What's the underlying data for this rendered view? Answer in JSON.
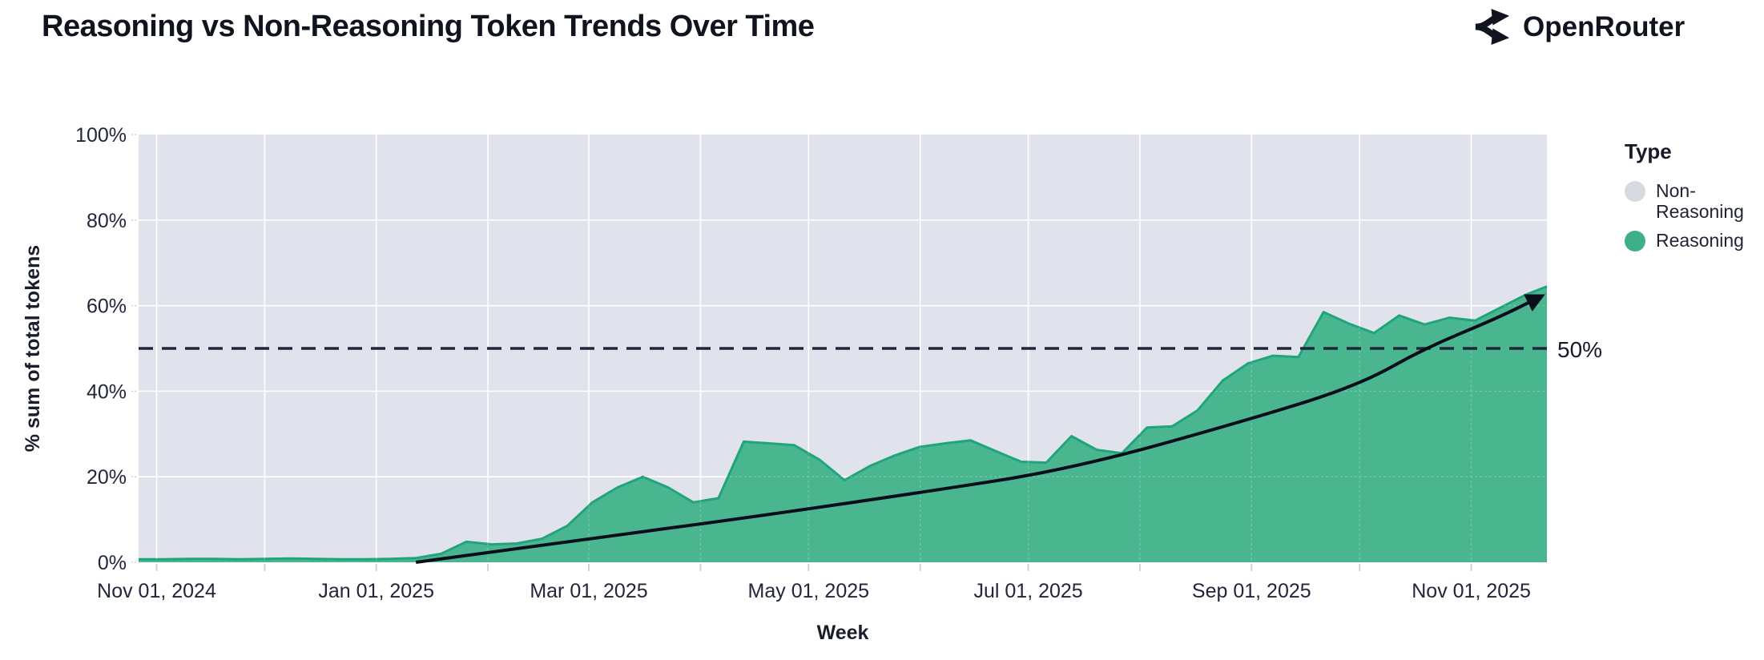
{
  "header": {
    "title": "Reasoning vs Non-Reasoning Token Trends Over Time",
    "brand": "OpenRouter"
  },
  "legend": {
    "title": "Type",
    "items": [
      {
        "label": "Non-Reasoning",
        "color": "#d7dae1"
      },
      {
        "label": "Reasoning",
        "color": "#3fae8a"
      }
    ]
  },
  "colors": {
    "plot_bg": "#e1e3ec",
    "gridline": "#ffffff",
    "area_fill": "#4ab690",
    "area_edge": "#1fa47c",
    "nonreasoning_fill": "#d7dae1",
    "dashed_line": "#20273a",
    "trend_line": "#0a0e1a",
    "tick_text": "#22263a",
    "tick_mark": "#cfd2db"
  },
  "chart_data": {
    "type": "area",
    "stacked_percent": true,
    "title": "Reasoning vs Non-Reasoning Token Trends Over Time",
    "xlabel": "Week",
    "ylabel": "% sum of total tokens",
    "ylim": [
      0,
      100
    ],
    "grid": true,
    "legend_position": "right",
    "x_domain": [
      "2024-10-27",
      "2025-11-22"
    ],
    "y_ticks": [
      {
        "label": "0%",
        "value": 0
      },
      {
        "label": "20%",
        "value": 20
      },
      {
        "label": "40%",
        "value": 40
      },
      {
        "label": "60%",
        "value": 60
      },
      {
        "label": "80%",
        "value": 80
      },
      {
        "label": "100%",
        "value": 100
      }
    ],
    "x_ticks": [
      {
        "label": "Nov 01, 2024",
        "date": "2024-11-01"
      },
      {
        "label": "Jan 01, 2025",
        "date": "2025-01-01"
      },
      {
        "label": "Mar 01, 2025",
        "date": "2025-03-01"
      },
      {
        "label": "May 01, 2025",
        "date": "2025-05-01"
      },
      {
        "label": "Jul 01, 2025",
        "date": "2025-07-01"
      },
      {
        "label": "Sep 01, 2025",
        "date": "2025-09-01"
      },
      {
        "label": "Nov 01, 2025",
        "date": "2025-11-01"
      }
    ],
    "month_ticks": [
      "2024-11-01",
      "2024-12-01",
      "2025-01-01",
      "2025-02-01",
      "2025-03-01",
      "2025-04-01",
      "2025-05-01",
      "2025-06-01",
      "2025-07-01",
      "2025-08-01",
      "2025-09-01",
      "2025-10-01",
      "2025-11-01"
    ],
    "series": [
      {
        "name": "Reasoning",
        "color": "#4ab690",
        "x": [
          "2024-10-27",
          "2024-11-03",
          "2024-11-10",
          "2024-11-17",
          "2024-11-24",
          "2024-12-01",
          "2024-12-08",
          "2024-12-15",
          "2024-12-22",
          "2024-12-29",
          "2025-01-05",
          "2025-01-12",
          "2025-01-19",
          "2025-01-26",
          "2025-02-02",
          "2025-02-09",
          "2025-02-16",
          "2025-02-23",
          "2025-03-02",
          "2025-03-09",
          "2025-03-16",
          "2025-03-23",
          "2025-03-30",
          "2025-04-06",
          "2025-04-13",
          "2025-04-20",
          "2025-04-27",
          "2025-05-04",
          "2025-05-11",
          "2025-05-18",
          "2025-05-25",
          "2025-06-01",
          "2025-06-08",
          "2025-06-15",
          "2025-06-22",
          "2025-06-29",
          "2025-07-06",
          "2025-07-13",
          "2025-07-20",
          "2025-07-27",
          "2025-08-03",
          "2025-08-10",
          "2025-08-17",
          "2025-08-24",
          "2025-08-31",
          "2025-09-07",
          "2025-09-14",
          "2025-09-21",
          "2025-09-28",
          "2025-10-05",
          "2025-10-12",
          "2025-10-19",
          "2025-10-26",
          "2025-11-02",
          "2025-11-09",
          "2025-11-16",
          "2025-11-22"
        ],
        "values": [
          0.7,
          0.7,
          0.8,
          0.8,
          0.7,
          0.8,
          0.9,
          0.8,
          0.7,
          0.7,
          0.8,
          1.0,
          2.0,
          4.8,
          4.2,
          4.4,
          5.5,
          8.5,
          14,
          17.5,
          20,
          17.5,
          14,
          15,
          28.2,
          27.8,
          27.4,
          24,
          19.2,
          22.5,
          25,
          27,
          27.8,
          28.5,
          26,
          23.5,
          23.3,
          29.5,
          26.3,
          25.5,
          31.5,
          31.8,
          35.5,
          42.5,
          46.5,
          48.3,
          48,
          58.5,
          55.8,
          53.6,
          57.7,
          55.6,
          57.2,
          56.5,
          59.5,
          62.5,
          64.5
        ]
      },
      {
        "name": "Non-Reasoning",
        "color": "#d7dae1",
        "values_rule": "100 minus Reasoning (chart is stacked to 100%)"
      }
    ],
    "annotations": {
      "fifty_line": {
        "y": 50,
        "label": "50%",
        "style": "dashed"
      },
      "trend_arrow": {
        "description": "black exponential trend arrow",
        "points": [
          [
            "2025-01-12",
            0
          ],
          [
            "2025-03-02",
            5.6
          ],
          [
            "2025-04-13",
            10.3
          ],
          [
            "2025-06-01",
            16.3
          ],
          [
            "2025-07-13",
            21.8
          ],
          [
            "2025-09-01",
            33.5
          ],
          [
            "2025-10-01",
            41.5
          ],
          [
            "2025-10-19",
            50
          ],
          [
            "2025-11-08",
            57
          ],
          [
            "2025-11-20",
            62
          ]
        ]
      }
    }
  }
}
